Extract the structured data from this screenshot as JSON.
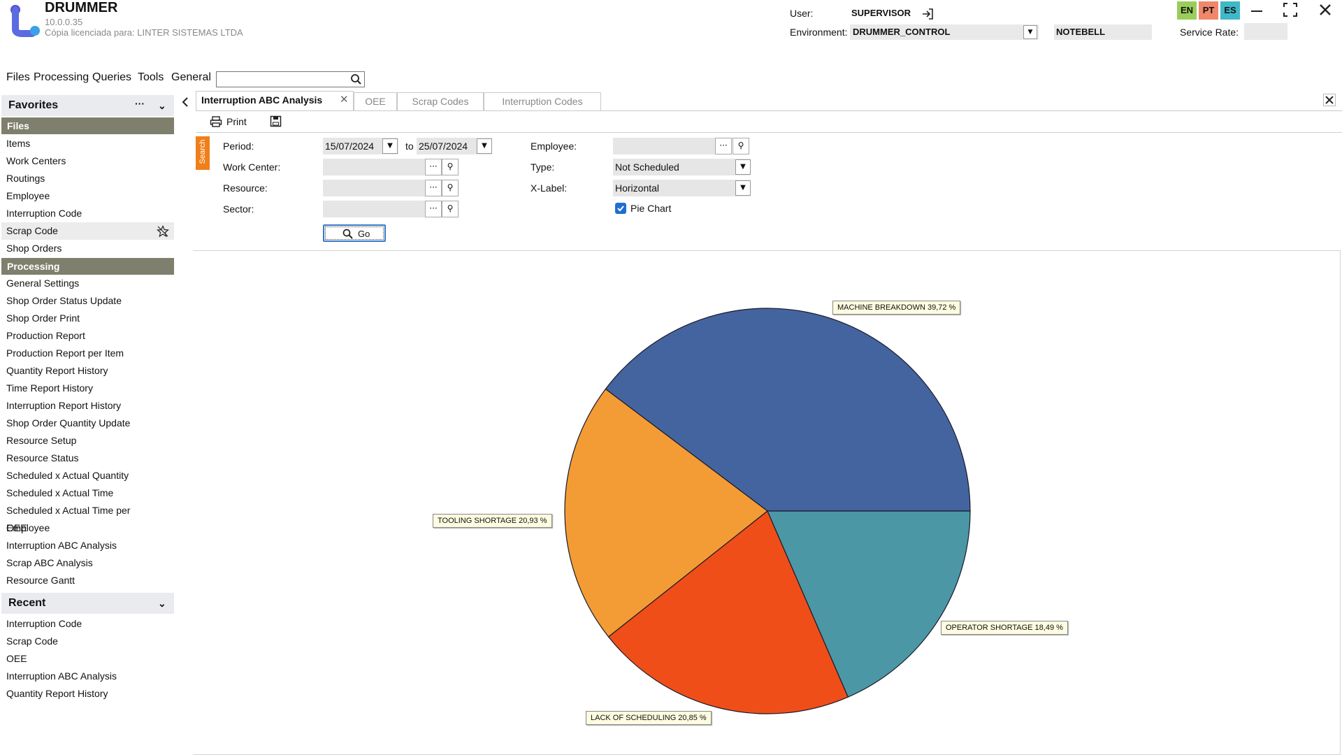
{
  "app": {
    "title": "DRUMMER",
    "version": "10.0.0.35",
    "license": "Cópia licenciada para: LINTER SISTEMAS LTDA"
  },
  "header": {
    "user_label": "User:",
    "user_value": "SUPERVISOR",
    "environment_label": "Environment:",
    "environment_value": "DRUMMER_CONTROL",
    "machine_value": "NOTEBELL",
    "service_rate_label": "Service Rate:",
    "service_rate_value": "",
    "languages": [
      {
        "code": "EN",
        "color": "#9acd5a"
      },
      {
        "code": "PT",
        "color": "#f0866a"
      },
      {
        "code": "ES",
        "color": "#3fb8c8"
      }
    ]
  },
  "menu": {
    "items": [
      "Files",
      "Processing",
      "Queries",
      "Tools",
      "General"
    ],
    "search_value": ""
  },
  "sidebar": {
    "favorites_title": "Favorites",
    "files_section": "Files",
    "files_items": [
      "Items",
      "Work Centers",
      "Routings",
      "Employee",
      "Interruption Code",
      "Scrap Code",
      "Shop Orders"
    ],
    "processing_section": "Processing",
    "processing_items": [
      "General Settings",
      "Shop Order Status Update",
      "Shop Order Print",
      "Production Report",
      "Production Report per Item",
      "Quantity Report History",
      "Time Report History",
      "Interruption Report History",
      "Shop Order Quantity Update",
      "Resource Setup",
      "Resource Status",
      "Scheduled x Actual Quantity",
      "Scheduled x Actual Time",
      "Scheduled x Actual Time per Employee",
      "OEE",
      "Interruption ABC Analysis",
      "Scrap ABC Analysis",
      "Resource Gantt"
    ],
    "recent_title": "Recent",
    "recent_items": [
      "Interruption Code",
      "Scrap Code",
      "OEE",
      "Interruption ABC Analysis",
      "Quantity Report History"
    ]
  },
  "tabs": [
    "Interruption ABC Analysis",
    "OEE",
    "Scrap Codes",
    "Interruption Codes"
  ],
  "toolbar": {
    "print_label": "Print"
  },
  "form": {
    "search_tab": "Search",
    "period_label": "Period:",
    "period_from": "15/07/2024",
    "to_label": "to",
    "period_to": "25/07/2024",
    "work_center_label": "Work Center:",
    "work_center_value": "",
    "resource_label": "Resource:",
    "resource_value": "",
    "sector_label": "Sector:",
    "sector_value": "",
    "employee_label": "Employee:",
    "employee_value": "",
    "type_label": "Type:",
    "type_value": "Not Scheduled",
    "xlabel_label": "X-Label:",
    "xlabel_value": "Horizontal",
    "pie_chart_label": "Pie Chart",
    "pie_chart_checked": true,
    "go_label": "Go"
  },
  "chart_data": {
    "type": "pie",
    "slices": [
      {
        "label": "MACHINE BREAKDOWN",
        "value": 39.72,
        "display": "MACHINE BREAKDOWN 39,72 %",
        "color": "#4464a0"
      },
      {
        "label": "OPERATOR SHORTAGE",
        "value": 18.49,
        "display": "OPERATOR SHORTAGE 18,49 %",
        "color": "#4b97a6"
      },
      {
        "label": "LACK OF SCHEDULING",
        "value": 20.85,
        "display": "LACK OF SCHEDULING 20,85 %",
        "color": "#f04e19"
      },
      {
        "label": "TOOLING SHORTAGE",
        "value": 20.93,
        "display": "TOOLING SHORTAGE 20,93 %",
        "color": "#f39c35"
      }
    ]
  }
}
